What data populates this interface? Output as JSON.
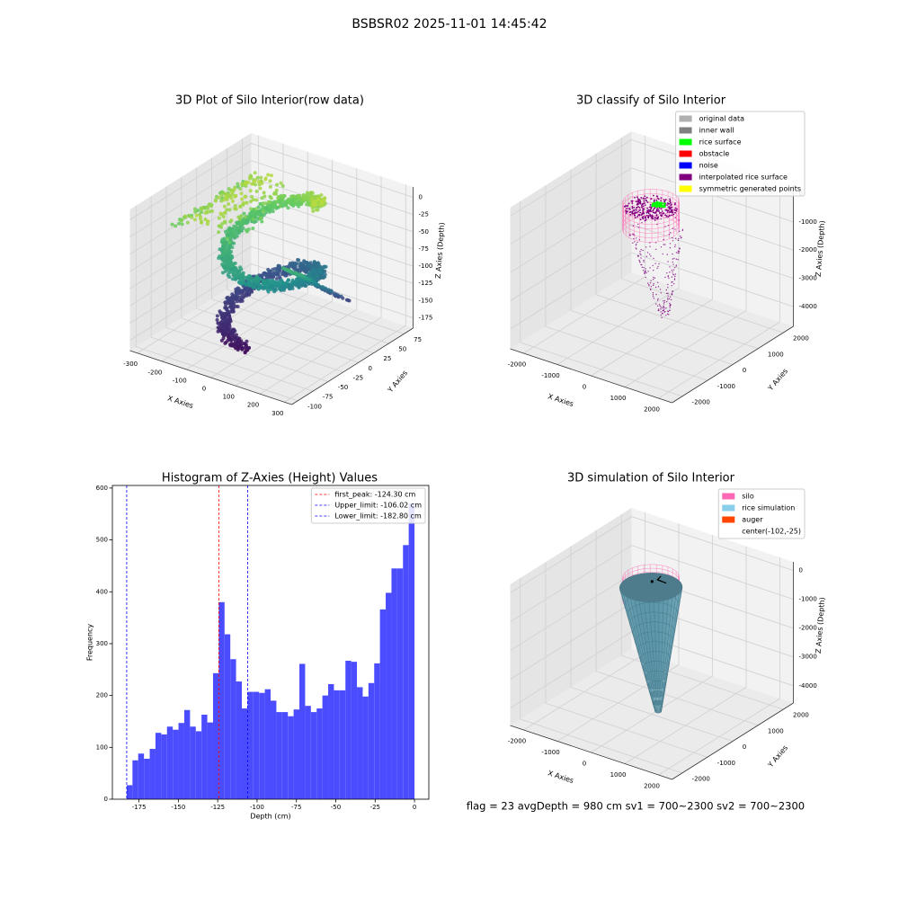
{
  "title": "BSBSR02 2025-11-01 14:45:42",
  "footer": "flag = 23  avgDepth = 980 cm  sv1 = 700~2300  sv2 = 700~2300",
  "chart_data": [
    {
      "type": "scatter3d",
      "title": "3D Plot of Silo Interior(row data)",
      "xlabel": "X Axies",
      "ylabel": "Y Axies",
      "zlabel": "Z Axies (Depth)",
      "xlim": [
        -330,
        330
      ],
      "xticks": [
        -300,
        -200,
        -100,
        0,
        100,
        200,
        300
      ],
      "ylim": [
        -110,
        90
      ],
      "yticks": [
        -100,
        -75,
        -50,
        -25,
        0,
        25,
        50,
        75
      ],
      "zlim": [
        -190,
        15
      ],
      "zticks": [
        -175,
        -150,
        -125,
        -100,
        -75,
        -50,
        -25,
        0
      ],
      "grid": true
    },
    {
      "type": "scatter3d",
      "title": "3D classify of Silo Interior",
      "xlabel": "X Axies",
      "ylabel": "Y Axies",
      "zlabel": "Z Axies (Depth)",
      "xlim": [
        -2400,
        2400
      ],
      "xticks": [
        -2000,
        -1000,
        0,
        1000,
        2000
      ],
      "ylim": [
        -2400,
        2400
      ],
      "yticks": [
        -2000,
        -1000,
        0,
        1000,
        2000
      ],
      "zlim": [
        -4700,
        300
      ],
      "zticks": [
        -4000,
        -3000,
        -2000,
        -1000,
        0
      ],
      "grid": true,
      "legend": "upper right",
      "series": [
        {
          "name": "original data",
          "color": "#b0b0b0"
        },
        {
          "name": "inner wall",
          "color": "#808080"
        },
        {
          "name": "rice surface",
          "color": "#00ff00"
        },
        {
          "name": "obstacle",
          "color": "#ff0000"
        },
        {
          "name": "noise",
          "color": "#0000ff"
        },
        {
          "name": "interpolated rice surface",
          "color": "#800080"
        },
        {
          "name": "symmetric generated points",
          "color": "#ffff00"
        }
      ]
    },
    {
      "type": "histogram",
      "title": "Histogram of Z-Axies (Height) Values",
      "xlabel": "Depth (cm)",
      "ylabel": "Frequency",
      "color": "#4c4cff",
      "bins": [
        -182.8,
        -179.14,
        -175.49,
        -171.83,
        -168.18,
        -164.52,
        -160.86,
        -157.21,
        -153.55,
        -149.9,
        -146.24,
        -142.58,
        -138.93,
        -135.27,
        -131.62,
        -127.96,
        -124.3,
        -120.65,
        -116.99,
        -113.34,
        -109.68,
        -106.02,
        -102.37,
        -98.71,
        -95.06,
        -91.4,
        -87.74,
        -84.09,
        -80.43,
        -76.78,
        -73.12,
        -69.46,
        -65.81,
        -62.15,
        -58.5,
        -54.84,
        -51.18,
        -47.53,
        -43.87,
        -40.22,
        -36.56,
        -32.9,
        -29.25,
        -25.59,
        -21.94,
        -18.28,
        -14.62,
        -10.97,
        -7.31,
        -3.66,
        0
      ],
      "counts": [
        27,
        75,
        88,
        78,
        97,
        128,
        125,
        140,
        134,
        147,
        172,
        140,
        131,
        163,
        148,
        243,
        380,
        318,
        270,
        227,
        175,
        207,
        207,
        205,
        212,
        190,
        168,
        168,
        160,
        173,
        261,
        180,
        168,
        175,
        200,
        222,
        210,
        210,
        267,
        265,
        216,
        198,
        224,
        262,
        366,
        398,
        445,
        445,
        490,
        570
      ],
      "xlim": [
        -191.9,
        9.1
      ],
      "xticks": [
        -175,
        -150,
        -125,
        -100,
        -75,
        -50,
        -25,
        0
      ],
      "ylim": [
        0,
        605
      ],
      "yticks": [
        0,
        100,
        200,
        300,
        400,
        500,
        600
      ],
      "legend": "upper right",
      "vlines": [
        {
          "name": "first_peak: -124.30 cm",
          "value": -124.3,
          "color": "#ff0000"
        },
        {
          "name": "Upper_limit: -106.02 cm",
          "value": -106.02,
          "color": "#0000ff"
        },
        {
          "name": "Lower_limit: -182.80 cm",
          "value": -182.8,
          "color": "#0000ff"
        }
      ]
    },
    {
      "type": "surface3d",
      "title": "3D simulation of Silo Interior",
      "xlabel": "X Axies",
      "ylabel": "Y Axies",
      "zlabel": "Z Axies (Depth)",
      "xlim": [
        -2400,
        2400
      ],
      "xticks": [
        -2000,
        -1000,
        0,
        1000,
        2000
      ],
      "ylim": [
        -2400,
        2400
      ],
      "yticks": [
        -2000,
        -1000,
        0,
        1000,
        2000
      ],
      "zlim": [
        -4600,
        300
      ],
      "zticks": [
        -4000,
        -3000,
        -2000,
        -1000,
        0
      ],
      "grid": true,
      "legend": "upper right",
      "series": [
        {
          "name": "silo",
          "color": "#ff69b4"
        },
        {
          "name": "rice simulation",
          "color": "#87ceeb"
        },
        {
          "name": "auger",
          "color": "#ff4500"
        },
        {
          "name": "center(-102,-25)"
        }
      ]
    }
  ]
}
